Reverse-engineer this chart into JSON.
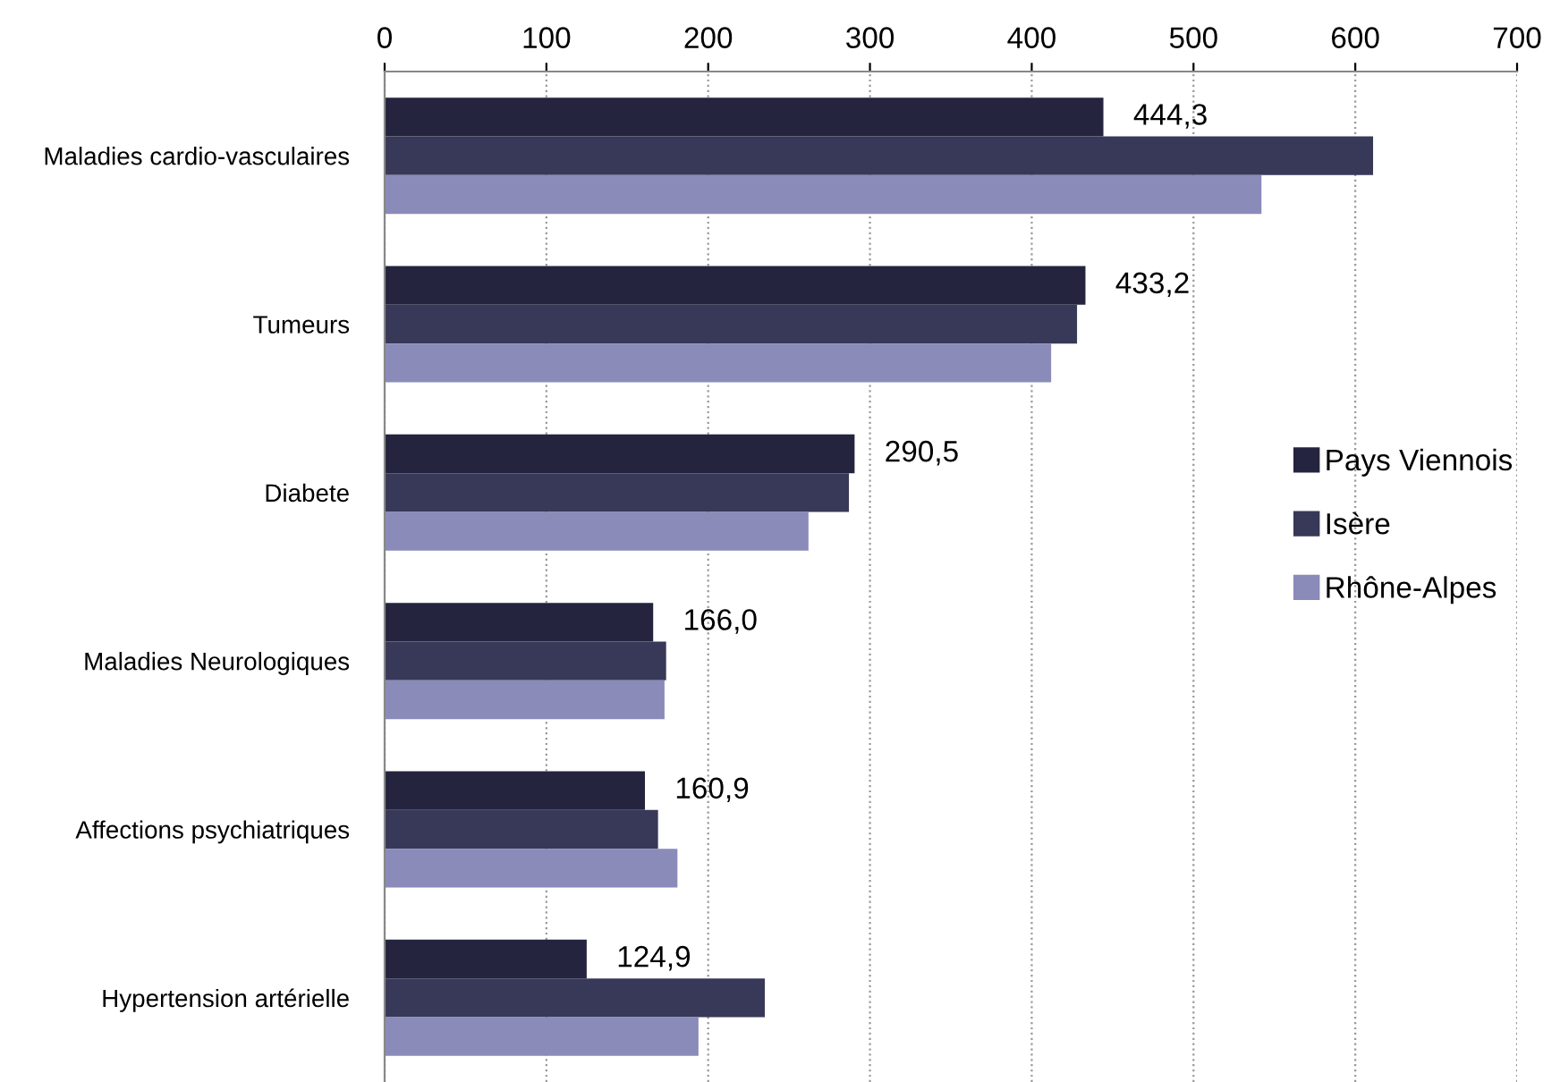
{
  "chart_data": {
    "type": "bar",
    "orientation": "horizontal",
    "categories": [
      "Maladies cardio-vasculaires",
      "Tumeurs",
      "Diabete",
      "Maladies Neurologiques",
      "Affections psychiatriques",
      "Hypertension artérielle"
    ],
    "series": [
      {
        "name": "Pays Viennois",
        "color": "#25243f",
        "values": [
          444.3,
          433.2,
          290.5,
          166.0,
          160.9,
          124.9
        ],
        "value_labels": [
          "444,3",
          "433,2",
          "290,5",
          "166,0",
          "160,9",
          "124,9"
        ]
      },
      {
        "name": "Isère",
        "color": "#383858",
        "values": [
          611,
          428,
          287,
          174,
          169,
          235
        ]
      },
      {
        "name": "Rhône-Alpes",
        "color": "#8a8bb9",
        "values": [
          542,
          412,
          262,
          173,
          181,
          194
        ]
      }
    ],
    "xlim": [
      0,
      700
    ],
    "xticks": [
      0,
      100,
      200,
      300,
      400,
      500,
      600,
      700
    ],
    "grid": "x",
    "legend": "right"
  }
}
